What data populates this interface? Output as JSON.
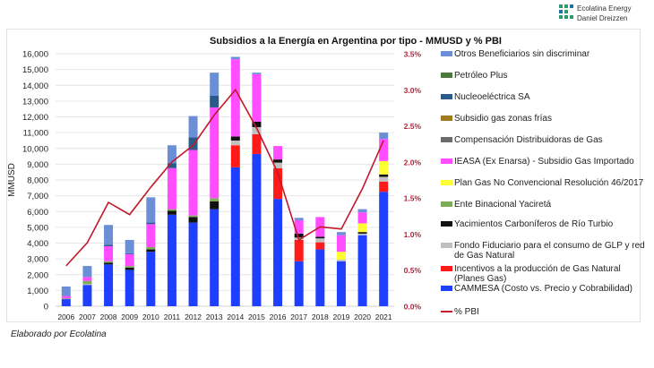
{
  "brand": {
    "line1": "Ecolatina Energy",
    "line2": "Daniel Dreizzen"
  },
  "credit": "Elaborado por Ecolatina",
  "chart_data": {
    "type": "bar",
    "stacked": true,
    "title": "Subsidios a la Energía en Argentina por tipo - MMUSD y % PBI",
    "xlabel": "",
    "ylabel": "MMUSD",
    "y2label": "% PBI",
    "ylim": [
      0,
      16000
    ],
    "y2lim": [
      0,
      3.5
    ],
    "yticks": [
      "0",
      "1,000",
      "2,000",
      "3,000",
      "4,000",
      "5,000",
      "6,000",
      "7,000",
      "8,000",
      "9,000",
      "10,000",
      "11,000",
      "12,000",
      "13,000",
      "14,000",
      "15,000",
      "16,000"
    ],
    "y2ticks": [
      "0.0%",
      "0.5%",
      "1.0%",
      "1.5%",
      "2.0%",
      "2.5%",
      "3.0%",
      "3.5%"
    ],
    "grid": true,
    "legend_position": "right",
    "categories": [
      "2006",
      "2007",
      "2008",
      "2009",
      "2010",
      "2011",
      "2012",
      "2013",
      "2014",
      "2015",
      "2016",
      "2017",
      "2018",
      "2019",
      "2020",
      "2021"
    ],
    "series": [
      {
        "name": "CAMMESA (Costo vs. Precio y Cobrabilidad)",
        "color": "#1f3fff",
        "values": [
          450,
          1350,
          2650,
          2300,
          3450,
          5800,
          5300,
          6150,
          8800,
          9650,
          6800,
          2850,
          3600,
          2850,
          4500,
          7250
        ]
      },
      {
        "name": "Incentivos a la producción de Gas Natural (Planes Gas)",
        "color": "#ff1a1a",
        "values": [
          0,
          0,
          0,
          0,
          0,
          0,
          0,
          0,
          1400,
          1250,
          1950,
          1350,
          450,
          0,
          0,
          650
        ]
      },
      {
        "name": "Fondo Fiduciario para el consumo de GLP y red de Gas Natural",
        "color": "#c0c0c0",
        "values": [
          0,
          50,
          0,
          0,
          0,
          0,
          0,
          0,
          300,
          450,
          350,
          150,
          250,
          100,
          100,
          300
        ]
      },
      {
        "name": "Yacimientos Carboníferos de Río Turbio",
        "color": "#111111",
        "values": [
          0,
          0,
          100,
          150,
          150,
          250,
          350,
          500,
          250,
          350,
          200,
          250,
          100,
          0,
          100,
          150
        ]
      },
      {
        "name": "Ente Binacional Yaciretá",
        "color": "#7cab5a",
        "values": [
          50,
          200,
          100,
          100,
          150,
          100,
          100,
          200,
          0,
          0,
          0,
          0,
          0,
          0,
          0,
          0
        ]
      },
      {
        "name": "Plan Gas No Convencional Resolución 46/2017",
        "color": "#ffff33",
        "values": [
          0,
          0,
          0,
          0,
          0,
          0,
          0,
          0,
          0,
          0,
          0,
          0,
          0,
          500,
          550,
          850
        ]
      },
      {
        "name": "IEASA (Ex Enarsa) - Subsidio Gas Importado",
        "color": "#ff4dff",
        "values": [
          150,
          250,
          950,
          750,
          1450,
          2600,
          4150,
          5750,
          4900,
          3000,
          850,
          850,
          1250,
          1050,
          700,
          1400
        ]
      },
      {
        "name": "Compensación Distribuidoras de Gas",
        "color": "#6b6b6b",
        "values": [
          0,
          0,
          0,
          0,
          0,
          0,
          0,
          0,
          0,
          0,
          0,
          0,
          0,
          0,
          0,
          0
        ]
      },
      {
        "name": "Subsidio gas zonas frías",
        "color": "#a07a1e",
        "values": [
          0,
          0,
          0,
          0,
          0,
          0,
          0,
          0,
          0,
          0,
          0,
          0,
          0,
          0,
          0,
          0
        ]
      },
      {
        "name": "Nucleoeléctrica SA",
        "color": "#2a5a8a",
        "values": [
          0,
          0,
          100,
          50,
          100,
          300,
          800,
          750,
          0,
          0,
          0,
          0,
          0,
          0,
          0,
          0
        ]
      },
      {
        "name": "Petróleo Plus",
        "color": "#4a7a3a",
        "values": [
          0,
          0,
          0,
          0,
          0,
          0,
          0,
          0,
          0,
          0,
          0,
          0,
          0,
          0,
          0,
          0
        ]
      },
      {
        "name": "Otros Beneficiarios sin discriminar",
        "color": "#6a8fd6",
        "values": [
          600,
          700,
          1250,
          850,
          1600,
          1150,
          1350,
          1450,
          150,
          100,
          0,
          150,
          0,
          200,
          200,
          400
        ]
      }
    ],
    "line": {
      "name": "% PBI",
      "color": "#c0182a",
      "axis": "right",
      "values": [
        0.56,
        0.88,
        1.44,
        1.27,
        1.65,
        2.0,
        2.23,
        2.65,
        3.0,
        2.47,
        1.85,
        0.92,
        1.1,
        1.07,
        1.63,
        2.3
      ]
    },
    "legend_order": [
      "Otros Beneficiarios sin discriminar",
      "Petróleo Plus",
      "Nucleoeléctrica SA",
      "Subsidio gas zonas frías",
      "Compensación Distribuidoras de Gas",
      "IEASA (Ex Enarsa) - Subsidio Gas Importado",
      "Plan Gas No Convencional Resolución 46/2017",
      "Ente Binacional Yaciretá",
      "Yacimientos Carboníferos de Río Turbio",
      "Fondo Fiduciario para el consumo de GLP y red de Gas Natural",
      "Incentivos a la producción de Gas Natural (Planes Gas)",
      "CAMMESA (Costo vs. Precio y Cobrabilidad)",
      "% PBI"
    ]
  }
}
